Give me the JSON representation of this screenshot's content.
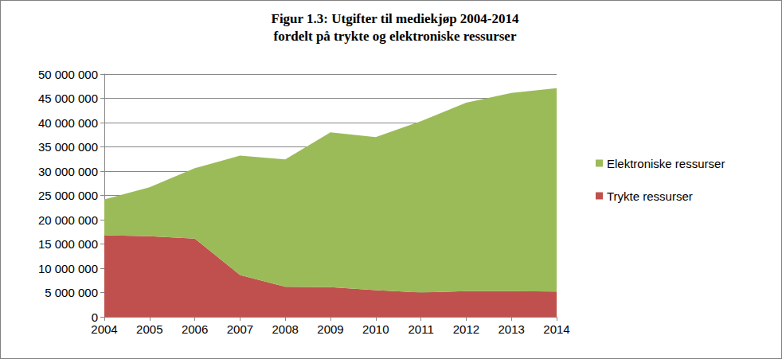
{
  "chart_data": {
    "type": "area",
    "title": "Figur 1.3: Utgifter til mediekjøp 2004-2014\nfordelt på trykte og elektroniske ressurser",
    "categories": [
      "2004",
      "2005",
      "2006",
      "2007",
      "2008",
      "2009",
      "2010",
      "2011",
      "2012",
      "2013",
      "2014"
    ],
    "series": [
      {
        "name": "Trykte ressurser",
        "color": "#c0504d",
        "values": [
          16800000,
          16600000,
          16100000,
          8600000,
          6200000,
          6100000,
          5500000,
          5000000,
          5300000,
          5300000,
          5200000
        ]
      },
      {
        "name": "Elektroniske ressurser",
        "color": "#9bbb59",
        "values": [
          7400000,
          10100000,
          14500000,
          24600000,
          26200000,
          31900000,
          31500000,
          35300000,
          38800000,
          40800000,
          41900000
        ]
      }
    ],
    "stacked": true,
    "ylim": [
      0,
      50000000
    ],
    "yticks": [
      {
        "value": 0,
        "label": "0"
      },
      {
        "value": 5000000,
        "label": "5 000 000"
      },
      {
        "value": 10000000,
        "label": "10 000 000"
      },
      {
        "value": 15000000,
        "label": "15 000 000"
      },
      {
        "value": 20000000,
        "label": "20 000 000"
      },
      {
        "value": 25000000,
        "label": "25 000 000"
      },
      {
        "value": 30000000,
        "label": "30 000 000"
      },
      {
        "value": 35000000,
        "label": "35 000 000"
      },
      {
        "value": 40000000,
        "label": "40 000 000"
      },
      {
        "value": 45000000,
        "label": "45 000 000"
      },
      {
        "value": 50000000,
        "label": "50 000 000"
      }
    ],
    "grid": true,
    "legend": "right"
  }
}
